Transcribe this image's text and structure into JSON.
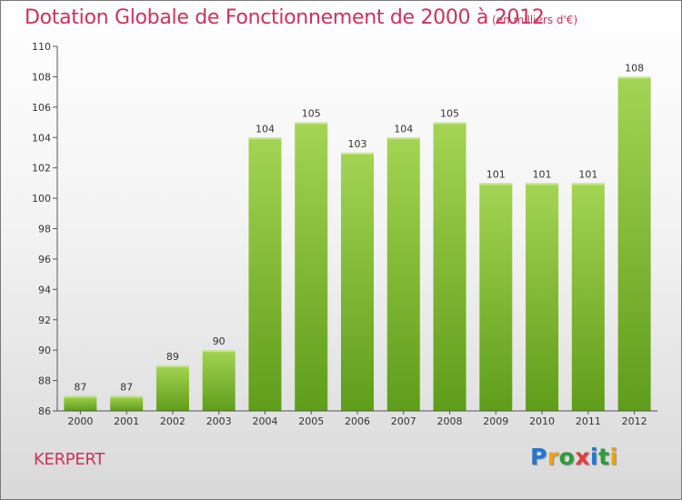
{
  "header": {
    "title": "Dotation Globale de Fonctionnement de 2000 à 2012",
    "subtitle": "(en milliers d'€)"
  },
  "footer": {
    "commune": "KERPERT",
    "brand": "Proxiti",
    "brand_colors": [
      "#1f77d0",
      "#e8a317",
      "#2a9e3a",
      "#e33d3d",
      "#1f77d0",
      "#2a9e3a",
      "#e8a317"
    ]
  },
  "colors": {
    "title": "#c8345c",
    "bar_top": "#a4d453",
    "bar_bottom": "#5f9d1a",
    "axis": "#555555"
  },
  "chart_data": {
    "type": "bar",
    "title": "Dotation Globale de Fonctionnement de 2000 à 2012",
    "subtitle": "(en milliers d'€)",
    "categories": [
      "2000",
      "2001",
      "2002",
      "2003",
      "2004",
      "2005",
      "2006",
      "2007",
      "2008",
      "2009",
      "2010",
      "2011",
      "2012"
    ],
    "values": [
      87,
      87,
      89,
      90,
      104,
      105,
      103,
      104,
      105,
      101,
      101,
      101,
      108
    ],
    "ylim": [
      86,
      110
    ],
    "yticks": [
      86,
      88,
      90,
      92,
      94,
      96,
      98,
      100,
      102,
      104,
      106,
      108,
      110
    ],
    "xlabel": "",
    "ylabel": "",
    "grid": false,
    "data_labels": true
  }
}
